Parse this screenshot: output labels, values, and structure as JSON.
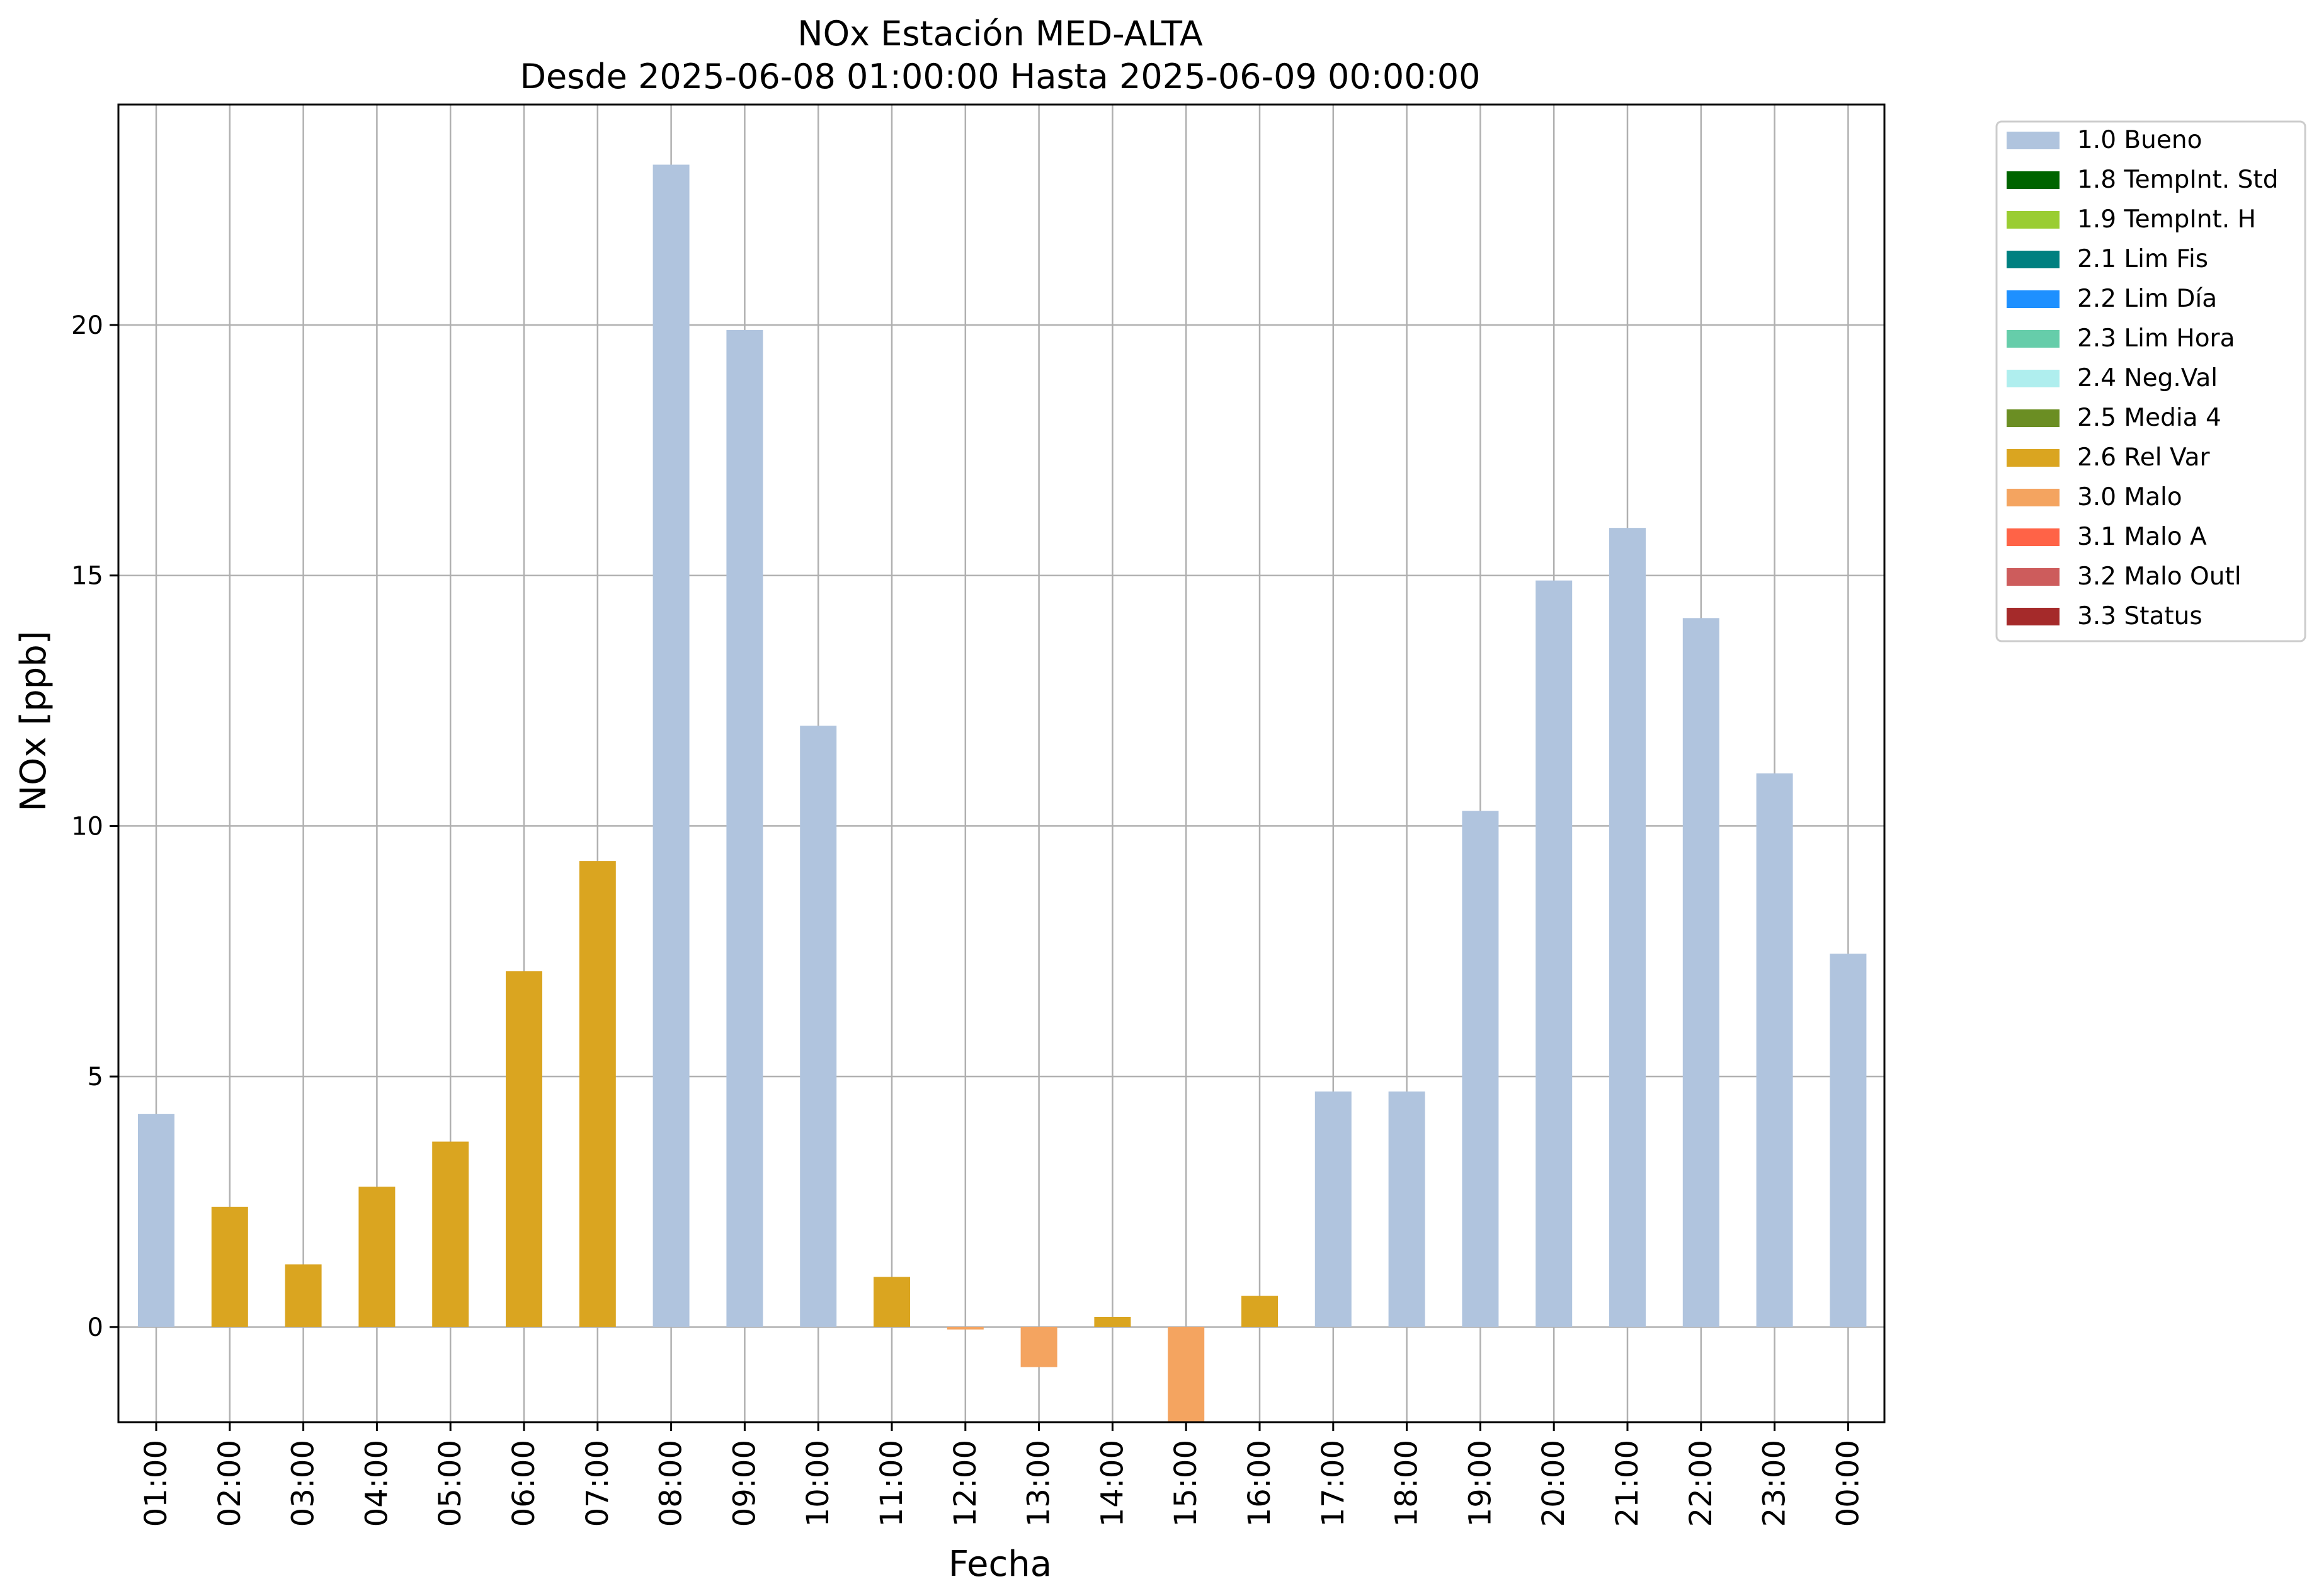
{
  "chart_data": {
    "type": "bar",
    "title": "NOx Estación MED-ALTA",
    "subtitle": "Desde 2025-06-08 01:00:00 Hasta 2025-06-09 00:00:00",
    "xlabel": "Fecha",
    "ylabel": "NOx [ppb]",
    "ylim": [
      -1.9,
      24.4
    ],
    "yticks": [
      0,
      5,
      10,
      15,
      20
    ],
    "grid": true,
    "legend_position": "outside-top-right",
    "categories": [
      "01:00",
      "02:00",
      "03:00",
      "04:00",
      "05:00",
      "06:00",
      "07:00",
      "08:00",
      "09:00",
      "10:00",
      "11:00",
      "12:00",
      "13:00",
      "14:00",
      "15:00",
      "16:00",
      "17:00",
      "18:00",
      "19:00",
      "20:00",
      "21:00",
      "22:00",
      "23:00",
      "00:00"
    ],
    "values": [
      4.25,
      2.4,
      1.25,
      2.8,
      3.7,
      7.1,
      9.3,
      23.2,
      19.9,
      12.0,
      1.0,
      -0.05,
      -0.8,
      0.2,
      -1.9,
      0.62,
      4.7,
      4.7,
      10.3,
      14.9,
      15.95,
      14.15,
      11.05,
      7.45
    ],
    "flags": [
      "1.0 Bueno",
      "2.6 Rel Var",
      "2.6 Rel Var",
      "2.6 Rel Var",
      "2.6 Rel Var",
      "2.6 Rel Var",
      "2.6 Rel Var",
      "1.0 Bueno",
      "1.0 Bueno",
      "1.0 Bueno",
      "2.6 Rel Var",
      "3.0 Malo",
      "3.0 Malo",
      "2.6 Rel Var",
      "3.0 Malo",
      "2.6 Rel Var",
      "1.0 Bueno",
      "1.0 Bueno",
      "1.0 Bueno",
      "1.0 Bueno",
      "1.0 Bueno",
      "1.0 Bueno",
      "1.0 Bueno",
      "1.0 Bueno"
    ],
    "legend": [
      {
        "label": "1.0 Bueno",
        "color": "#b0c4de"
      },
      {
        "label": "1.8 TempInt. Std",
        "color": "#006400"
      },
      {
        "label": "1.9 TempInt. H",
        "color": "#9acd32"
      },
      {
        "label": "2.1 Lim Fis",
        "color": "#008080"
      },
      {
        "label": "2.2 Lim Día",
        "color": "#1e90ff"
      },
      {
        "label": "2.3 Lim Hora",
        "color": "#66cdaa"
      },
      {
        "label": "2.4 Neg.Val",
        "color": "#afeeee"
      },
      {
        "label": "2.5 Media 4",
        "color": "#6b8e23"
      },
      {
        "label": "2.6 Rel Var",
        "color": "#daa520"
      },
      {
        "label": "3.0 Malo",
        "color": "#f4a460"
      },
      {
        "label": "3.1 Malo A",
        "color": "#ff6347"
      },
      {
        "label": "3.2 Malo Outl",
        "color": "#cd5c5c"
      },
      {
        "label": "3.3 Status",
        "color": "#a52a2a"
      }
    ]
  }
}
